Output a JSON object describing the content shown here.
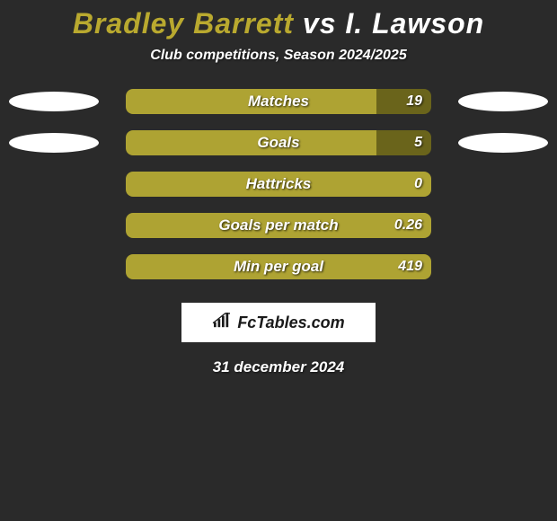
{
  "background_color": "#2a2a2a",
  "title": {
    "player1": "Bradley Barrett",
    "vs": " vs ",
    "player2": "I. Lawson",
    "player1_color": "#b9a92f",
    "vs_color": "#ffffff",
    "player2_color": "#ffffff",
    "fontsize": 32
  },
  "subtitle": {
    "text": "Club competitions, Season 2024/2025",
    "fontsize": 16
  },
  "bar_style": {
    "track_color": "#6a641b",
    "fill_color": "#aea333",
    "border_radius": 8,
    "label_fontsize": 17,
    "value_fontsize": 16
  },
  "rows": [
    {
      "label": "Matches",
      "value": "19",
      "fill_pct": 82,
      "left_oval": true,
      "right_oval": true
    },
    {
      "label": "Goals",
      "value": "5",
      "fill_pct": 82,
      "left_oval": true,
      "right_oval": true
    },
    {
      "label": "Hattricks",
      "value": "0",
      "fill_pct": 100,
      "left_oval": false,
      "right_oval": false
    },
    {
      "label": "Goals per match",
      "value": "0.26",
      "fill_pct": 100,
      "left_oval": false,
      "right_oval": false
    },
    {
      "label": "Min per goal",
      "value": "419",
      "fill_pct": 100,
      "left_oval": false,
      "right_oval": false
    }
  ],
  "oval_color": "#ffffff",
  "logo": {
    "text": "FcTables.com",
    "icon_name": "bar-chart-icon",
    "text_color": "#1a1a1a",
    "box_bg": "#ffffff"
  },
  "date": {
    "text": "31 december 2024",
    "fontsize": 17
  }
}
